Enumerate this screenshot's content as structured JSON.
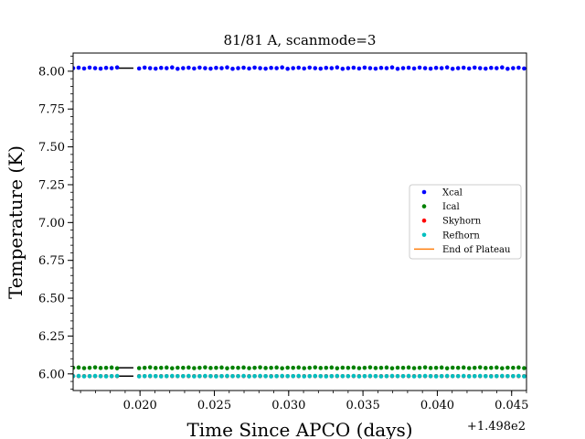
{
  "chart_data": {
    "type": "scatter",
    "title": "81/81 A, scanmode=3",
    "xlabel": "Time Since APCO (days)",
    "ylabel": "Temperature (K)",
    "x_offset_label": "+1.498e2",
    "xlim": [
      0.0155,
      0.046
    ],
    "ylim": [
      5.89,
      8.12
    ],
    "xticks": [
      0.02,
      0.025,
      0.03,
      0.035,
      0.04,
      0.045
    ],
    "xtick_labels": [
      "0.020",
      "0.025",
      "0.030",
      "0.035",
      "0.040",
      "0.045"
    ],
    "yticks": [
      6.0,
      6.25,
      6.5,
      6.75,
      7.0,
      7.25,
      7.5,
      7.75,
      8.0
    ],
    "ytick_labels": [
      "6.00",
      "6.25",
      "6.50",
      "6.75",
      "7.00",
      "7.25",
      "7.50",
      "7.75",
      "8.00"
    ],
    "legend_position": "center-right",
    "x_start": 0.0155,
    "x_step": 0.00037,
    "x_count": 84,
    "series": [
      {
        "name": "Xcal",
        "color": "#0000ff",
        "base": 8.02,
        "jitter": [
          0,
          0.003,
          -0.002,
          0.004,
          0,
          -0.003,
          0.002,
          0,
          0.005,
          -0.004
        ]
      },
      {
        "name": "Ical",
        "color": "#008000",
        "base": 6.04,
        "jitter": [
          0,
          0.002,
          -0.002,
          0,
          0.003,
          -0.001,
          0,
          0.002,
          -0.003,
          0.001
        ]
      },
      {
        "name": "Skyhorn",
        "color": "#ff0000",
        "base": 5.985,
        "jitter": [
          0,
          0,
          0,
          0,
          0,
          0,
          0,
          0,
          0,
          0
        ]
      },
      {
        "name": "Refhorn",
        "color": "#00bfbf",
        "base": 5.985,
        "jitter": [
          0,
          0.001,
          -0.001,
          0,
          0.001,
          0,
          -0.001,
          0,
          0.001,
          0
        ]
      }
    ],
    "end_of_plateau": {
      "name": "End of Plateau",
      "color": "#ff7f0e"
    },
    "marker_segments": [
      {
        "x": 0.019,
        "y": 8.02
      },
      {
        "x": 0.019,
        "y": 6.04
      },
      {
        "x": 0.019,
        "y": 5.985
      }
    ]
  }
}
